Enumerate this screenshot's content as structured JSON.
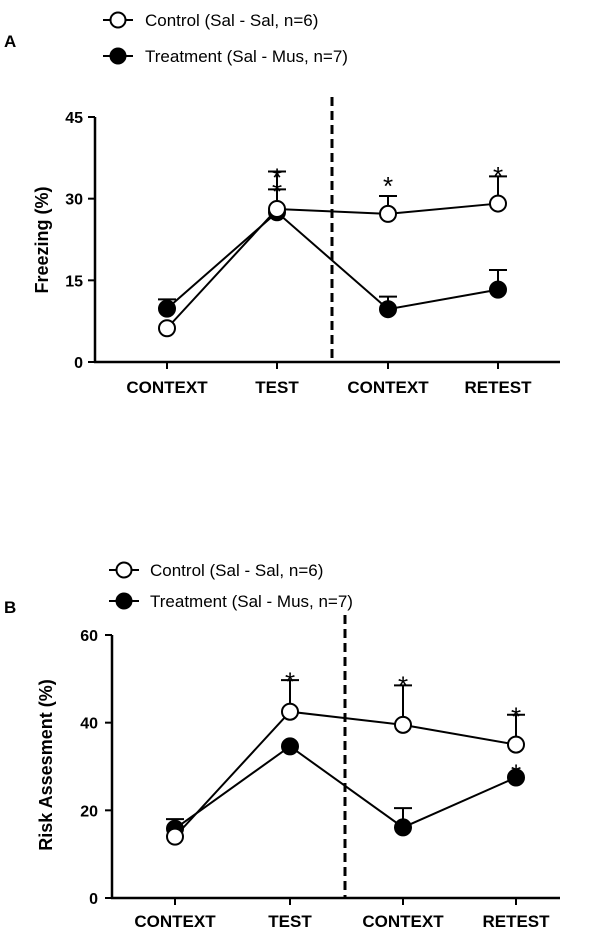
{
  "chart_data": [
    {
      "type": "line",
      "panel_label": "A",
      "ylabel": "Freezing (%)",
      "ylim": [
        0,
        45
      ],
      "yticks": [
        "0",
        "15",
        "30",
        "45"
      ],
      "categories": [
        "CONTEXT",
        "TEST",
        "CONTEXT",
        "RETEST"
      ],
      "legend": [
        "Control (Sal - Sal, n=6)",
        "Treatment (Sal - Mus, n=7)"
      ],
      "series": [
        {
          "name": "Control (Sal - Sal, n=6)",
          "marker": "open-circle",
          "values": [
            6.2,
            28.1,
            27.2,
            29.1
          ],
          "errors": [
            0,
            6.9,
            3.3,
            5.0
          ]
        },
        {
          "name": "Treatment (Sal - Mus, n=7)",
          "marker": "filled-circle",
          "values": [
            9.8,
            27.5,
            9.7,
            13.3
          ],
          "errors": [
            1.7,
            4.2,
            2.3,
            3.6
          ]
        }
      ],
      "annotations": [
        {
          "category_index": 1,
          "text": "*",
          "value": 35.5
        },
        {
          "category_index": 1,
          "text": "*",
          "value": 33.0
        },
        {
          "category_index": 2,
          "text": "*",
          "value": 34.0
        },
        {
          "category_index": 3,
          "text": "*",
          "value": 35.8
        }
      ],
      "divider": "dashed line between TEST and CONTEXT"
    },
    {
      "type": "line",
      "panel_label": "B",
      "ylabel": "Risk Assesment (%)",
      "ylim": [
        0,
        60
      ],
      "yticks": [
        "0",
        "20",
        "40",
        "60"
      ],
      "categories": [
        "CONTEXT",
        "TEST",
        "CONTEXT",
        "RETEST"
      ],
      "legend": [
        "Control (Sal - Sal, n=6)",
        "Treatment (Sal - Mus, n=7)"
      ],
      "series": [
        {
          "name": "Control (Sal - Sal, n=6)",
          "marker": "open-circle",
          "values": [
            14.0,
            42.5,
            39.5,
            35.0
          ],
          "errors": [
            0,
            7.2,
            9.0,
            6.8
          ]
        },
        {
          "name": "Treatment (Sal - Mus, n=7)",
          "marker": "filled-circle",
          "values": [
            15.8,
            34.6,
            16.1,
            27.5
          ],
          "errors": [
            2.2,
            0,
            4.4,
            0
          ]
        }
      ],
      "annotations": [
        {
          "category_index": 1,
          "text": "*",
          "value": 51.5
        },
        {
          "category_index": 2,
          "text": "*",
          "value": 50.5
        },
        {
          "category_index": 3,
          "text": "*",
          "value": 43.5
        },
        {
          "category_index": 3,
          "text": "*",
          "value": 30.5
        }
      ],
      "divider": "dashed line between TEST and CONTEXT"
    }
  ]
}
